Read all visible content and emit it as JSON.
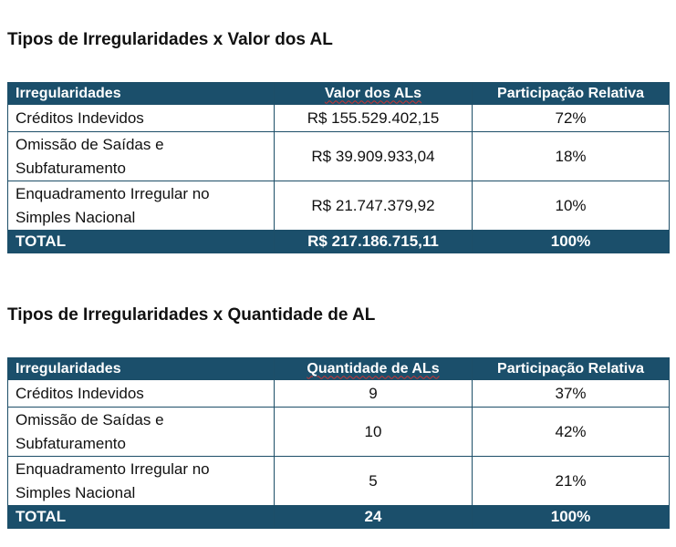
{
  "tables": [
    {
      "title": "Tipos de Irregularidades x Valor dos AL",
      "headers": [
        "Irregularidades",
        "Valor dos ALs",
        "Participação Relativa"
      ],
      "rows": [
        [
          "Créditos Indevidos",
          "R$ 155.529.402,15",
          "72%"
        ],
        [
          "Omissão de Saídas e Subfaturamento",
          "R$ 39.909.933,04",
          "18%"
        ],
        [
          "Enquadramento Irregular no Simples Nacional",
          "R$ 21.747.379,92",
          "10%"
        ]
      ],
      "total": [
        "TOTAL",
        "R$ 217.186.715,11",
        "100%"
      ]
    },
    {
      "title": "Tipos de Irregularidades x Quantidade de AL",
      "headers": [
        "Irregularidades",
        "Quantidade de ALs",
        "Participação Relativa"
      ],
      "rows": [
        [
          "Créditos Indevidos",
          "9",
          "37%"
        ],
        [
          "Omissão de Saídas e Subfaturamento",
          "10",
          "42%"
        ],
        [
          "Enquadramento Irregular no Simples Nacional",
          "5",
          "21%"
        ]
      ],
      "total": [
        "TOTAL",
        "24",
        "100%"
      ]
    }
  ],
  "colors": {
    "header_bg": "#1b4f6b",
    "header_text": "#ffffff"
  }
}
